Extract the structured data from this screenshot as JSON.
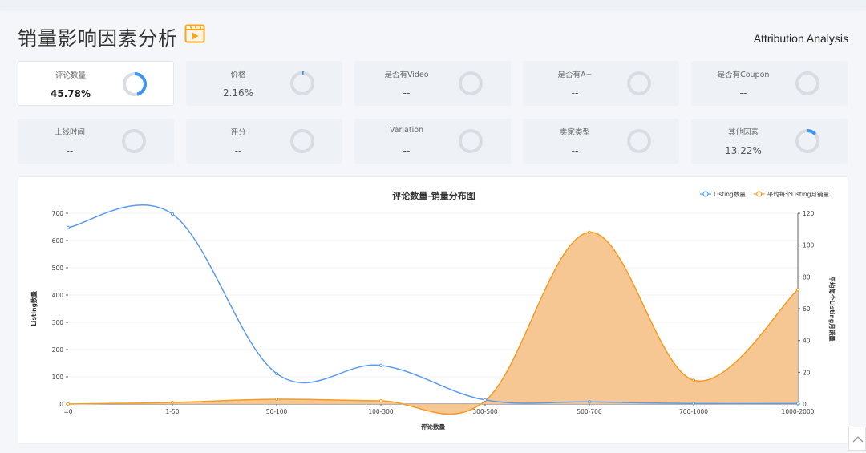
{
  "page": {
    "title": "销量影响因素分析",
    "subtitle_en": "Attribution Analysis"
  },
  "cards": [
    {
      "label": "评论数量",
      "value": "45.78%",
      "pct": 45.78,
      "active": true
    },
    {
      "label": "价格",
      "value": "2.16%",
      "pct": 2.16,
      "active": false
    },
    {
      "label": "是否有Video",
      "value": "--",
      "pct": 0,
      "active": false
    },
    {
      "label": "是否有A+",
      "value": "--",
      "pct": 0,
      "active": false
    },
    {
      "label": "是否有Coupon",
      "value": "--",
      "pct": 0,
      "active": false
    },
    {
      "label": "上线时间",
      "value": "--",
      "pct": 0,
      "active": false
    },
    {
      "label": "评分",
      "value": "--",
      "pct": 0,
      "active": false
    },
    {
      "label": "Variation",
      "value": "--",
      "pct": 0,
      "active": false
    },
    {
      "label": "卖家类型",
      "value": "--",
      "pct": 0,
      "active": false
    },
    {
      "label": "其他因素",
      "value": "13.22%",
      "pct": 13.22,
      "active": false
    }
  ],
  "colors": {
    "ring_track": "#d9dde3",
    "ring_fill": "#3c96f0",
    "blue_series": "#5b9bef",
    "orange_series": "#f59a23",
    "orange_fill": "#f5c48c"
  },
  "chart_data": {
    "type": "line",
    "title": "评论数量-销量分布图",
    "xlabel": "评论数量",
    "ylabel": "Listing数量",
    "y2label": "平均每个Listing月销量",
    "categories": [
      "=0",
      "1-50",
      "50-100",
      "100-300",
      "300-500",
      "500-700",
      "700-1000",
      "1000-2000"
    ],
    "ylim": [
      0,
      700
    ],
    "yticks": [
      "0",
      "100",
      "200",
      "300",
      "400",
      "500",
      "600",
      "700"
    ],
    "y2lim": [
      0,
      120
    ],
    "y2ticks": [
      "0",
      "20",
      "40",
      "60",
      "80",
      "100",
      "120"
    ],
    "legend_position": "top-right",
    "series": [
      {
        "name": "Listing数量",
        "axis": "left",
        "color": "#5b9bef",
        "area": false,
        "values": [
          648,
          697,
          112,
          142,
          15,
          8,
          2,
          2
        ]
      },
      {
        "name": "平均每个Listing月销量",
        "axis": "right",
        "color": "#f59a23",
        "area": true,
        "values": [
          0,
          1,
          3,
          2,
          2,
          108,
          15,
          72
        ]
      }
    ]
  }
}
